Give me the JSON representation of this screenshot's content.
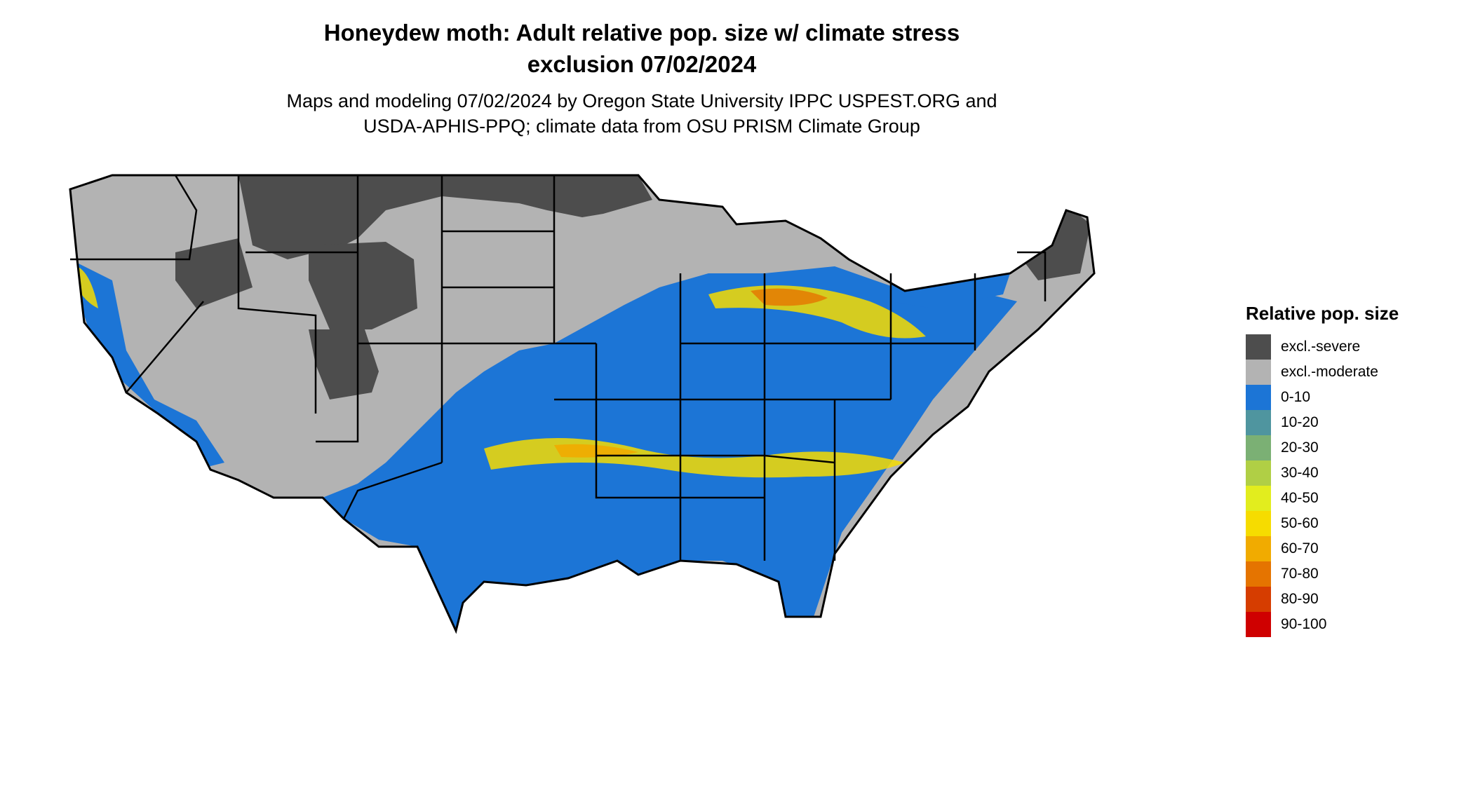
{
  "title": {
    "line1": "Honeydew moth: Adult relative pop. size w/ climate stress",
    "line2": "exclusion 07/02/2024"
  },
  "subtitle": {
    "line1": "Maps and modeling 07/02/2024 by Oregon State University IPPC USPEST.ORG and",
    "line2": "USDA-APHIS-PPQ; climate data from OSU PRISM Climate Group"
  },
  "legend": {
    "title": "Relative pop. size",
    "items": [
      {
        "label": "excl.-severe",
        "color": "#4d4d4d"
      },
      {
        "label": "excl.-moderate",
        "color": "#b3b3b3"
      },
      {
        "label": "0-10",
        "color": "#1c75d6"
      },
      {
        "label": "10-20",
        "color": "#4f959f"
      },
      {
        "label": "20-30",
        "color": "#7bb074"
      },
      {
        "label": "30-40",
        "color": "#b0cf45"
      },
      {
        "label": "40-50",
        "color": "#e2ed1e"
      },
      {
        "label": "50-60",
        "color": "#f6dc00"
      },
      {
        "label": "60-70",
        "color": "#f1ab00"
      },
      {
        "label": "70-80",
        "color": "#e57400"
      },
      {
        "label": "80-90",
        "color": "#d63d00"
      },
      {
        "label": "90-100",
        "color": "#cf0000"
      }
    ]
  }
}
